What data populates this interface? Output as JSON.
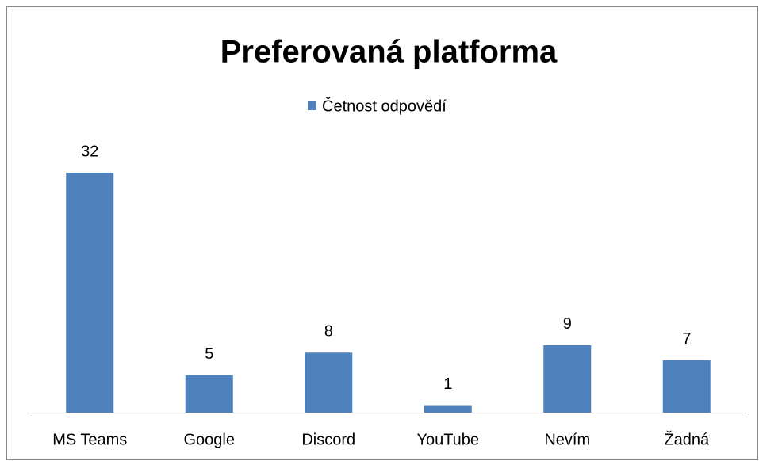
{
  "chart_data": {
    "type": "bar",
    "title": "Preferovaná platforma",
    "categories": [
      "MS Teams",
      "Google",
      "Discord",
      "YouTube",
      "Nevím",
      "Žadná"
    ],
    "series": [
      {
        "name": "Četnost odpovědí",
        "color": "#4f81bd",
        "values": [
          32,
          5,
          8,
          1,
          9,
          7
        ]
      }
    ],
    "legend": "top"
  }
}
